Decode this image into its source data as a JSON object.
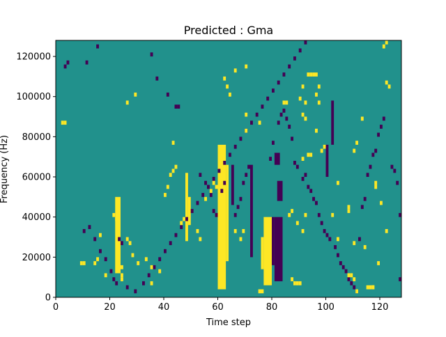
{
  "chart_data": {
    "type": "heatmap",
    "title": "Predicted : Gma",
    "xlabel": "Time step",
    "ylabel": "Frequency (Hz)",
    "xlim": [
      0,
      128
    ],
    "ylim": [
      0,
      128000
    ],
    "x_ticks": [
      0,
      20,
      40,
      60,
      80,
      100,
      120
    ],
    "y_ticks": [
      0,
      20000,
      40000,
      60000,
      80000,
      100000,
      120000
    ],
    "x_tick_labels": [
      "0",
      "20",
      "40",
      "60",
      "80",
      "100",
      "120"
    ],
    "y_tick_labels": [
      "0",
      "20000",
      "40000",
      "60000",
      "80000",
      "100000",
      "120000"
    ],
    "colormap": "viridis",
    "colors": {
      "low": "#440154",
      "mid": "#21918c",
      "high": "#fde725"
    },
    "background_level": "mid",
    "grid": false,
    "n_time_steps": 128,
    "n_freq_bins": 64,
    "bin_height_hz": 2000,
    "high_bands": [
      {
        "x": [
          60,
          63
        ],
        "freq": [
          4000,
          76000
        ]
      },
      {
        "x": [
          63,
          64
        ],
        "freq": [
          18000,
          66000
        ]
      },
      {
        "x": [
          77,
          80
        ],
        "freq": [
          6000,
          40000
        ]
      },
      {
        "x": [
          76,
          77
        ],
        "freq": [
          14000,
          30000
        ]
      },
      {
        "x": [
          48,
          49
        ],
        "freq": [
          28000,
          62000
        ]
      },
      {
        "x": [
          49,
          50
        ],
        "freq": [
          36000,
          50000
        ]
      },
      {
        "x": [
          22,
          24
        ],
        "freq": [
          12000,
          50000
        ]
      }
    ],
    "low_bands": [
      {
        "x": [
          81,
          84
        ],
        "freq": [
          8000,
          40000
        ]
      },
      {
        "x": [
          80,
          81
        ],
        "freq": [
          16000,
          40000
        ]
      },
      {
        "x": [
          82,
          84
        ],
        "freq": [
          48000,
          58000
        ]
      },
      {
        "x": [
          81,
          83
        ],
        "freq": [
          66000,
          72000
        ]
      },
      {
        "x": [
          72,
          73
        ],
        "freq": [
          20000,
          66000
        ]
      },
      {
        "x": [
          65,
          66
        ],
        "freq": [
          46000,
          66000
        ]
      },
      {
        "x": [
          102,
          103
        ],
        "freq": [
          76000,
          98000
        ]
      },
      {
        "x": [
          100,
          101
        ],
        "freq": [
          60000,
          76000
        ]
      }
    ],
    "high_cells": [
      [
        121,
        124000
      ],
      [
        122,
        126000
      ],
      [
        43,
        76000
      ],
      [
        29,
        100000
      ],
      [
        26,
        96000
      ],
      [
        63,
        104000
      ],
      [
        70,
        82000
      ],
      [
        75,
        86000
      ],
      [
        84,
        96000
      ],
      [
        85,
        96000
      ],
      [
        90,
        98000
      ],
      [
        91,
        104000
      ],
      [
        93,
        110000
      ],
      [
        94,
        110000
      ],
      [
        95,
        110000
      ],
      [
        96,
        110000
      ],
      [
        96,
        82000
      ],
      [
        97,
        96000
      ],
      [
        91,
        68000
      ],
      [
        98,
        72000
      ],
      [
        99,
        74000
      ],
      [
        104,
        56000
      ],
      [
        108,
        44000
      ],
      [
        108,
        42000
      ],
      [
        113,
        88000
      ],
      [
        118,
        54000
      ],
      [
        118,
        56000
      ],
      [
        120,
        46000
      ],
      [
        122,
        32000
      ],
      [
        114,
        24000
      ],
      [
        110,
        26000
      ],
      [
        104,
        28000
      ],
      [
        102,
        40000
      ],
      [
        92,
        40000
      ],
      [
        89,
        36000
      ],
      [
        91,
        32000
      ],
      [
        87,
        8000
      ],
      [
        88,
        6000
      ],
      [
        89,
        6000
      ],
      [
        90,
        6000
      ],
      [
        108,
        10000
      ],
      [
        109,
        10000
      ],
      [
        110,
        8000
      ],
      [
        111,
        2000
      ],
      [
        115,
        4000
      ],
      [
        116,
        4000
      ],
      [
        117,
        4000
      ],
      [
        119,
        16000
      ],
      [
        117,
        4000
      ],
      [
        35,
        6000
      ],
      [
        38,
        12000
      ],
      [
        30,
        16000
      ],
      [
        33,
        18000
      ],
      [
        14,
        16000
      ],
      [
        15,
        18000
      ],
      [
        9,
        16000
      ],
      [
        10,
        16000
      ],
      [
        18,
        10000
      ],
      [
        40,
        50000
      ],
      [
        41,
        54000
      ],
      [
        42,
        60000
      ],
      [
        43,
        62000
      ],
      [
        44,
        64000
      ],
      [
        46,
        36000
      ],
      [
        47,
        38000
      ],
      [
        52,
        32000
      ],
      [
        53,
        28000
      ],
      [
        55,
        48000
      ],
      [
        57,
        52000
      ],
      [
        58,
        56000
      ],
      [
        59,
        54000
      ],
      [
        66,
        32000
      ],
      [
        68,
        28000
      ],
      [
        69,
        32000
      ],
      [
        75,
        2000
      ],
      [
        76,
        2000
      ],
      [
        87,
        42000
      ],
      [
        86,
        40000
      ],
      [
        93,
        70000
      ],
      [
        94,
        70000
      ],
      [
        70,
        90000
      ],
      [
        70,
        114000
      ],
      [
        66,
        112000
      ],
      [
        62,
        108000
      ],
      [
        64,
        100000
      ],
      [
        97,
        104000
      ],
      [
        96,
        100000
      ],
      [
        92,
        96000
      ],
      [
        91,
        90000
      ],
      [
        92,
        88000
      ],
      [
        110,
        72000
      ],
      [
        111,
        76000
      ],
      [
        122,
        106000
      ],
      [
        123,
        104000
      ],
      [
        2,
        86000
      ],
      [
        3,
        86000
      ],
      [
        24,
        14000
      ],
      [
        28,
        20000
      ],
      [
        21,
        40000
      ],
      [
        22,
        38000
      ],
      [
        26,
        28000
      ],
      [
        27,
        26000
      ],
      [
        35,
        14000
      ],
      [
        24,
        10000
      ],
      [
        24,
        8000
      ],
      [
        16,
        30000
      ]
    ],
    "low_cells": [
      [
        3,
        114000
      ],
      [
        4,
        116000
      ],
      [
        11,
        116000
      ],
      [
        15,
        124000
      ],
      [
        23,
        28000
      ],
      [
        24,
        26000
      ],
      [
        35,
        120000
      ],
      [
        37,
        108000
      ],
      [
        41,
        100000
      ],
      [
        44,
        94000
      ],
      [
        45,
        94000
      ],
      [
        53,
        60000
      ],
      [
        55,
        56000
      ],
      [
        57,
        50000
      ],
      [
        58,
        42000
      ],
      [
        59,
        40000
      ],
      [
        61,
        52000
      ],
      [
        62,
        56000
      ],
      [
        66,
        40000
      ],
      [
        67,
        44000
      ],
      [
        68,
        48000
      ],
      [
        69,
        56000
      ],
      [
        70,
        60000
      ],
      [
        71,
        64000
      ],
      [
        79,
        68000
      ],
      [
        80,
        76000
      ],
      [
        82,
        86000
      ],
      [
        83,
        90000
      ],
      [
        84,
        92000
      ],
      [
        85,
        88000
      ],
      [
        86,
        84000
      ],
      [
        87,
        78000
      ],
      [
        88,
        66000
      ],
      [
        89,
        64000
      ],
      [
        91,
        58000
      ],
      [
        92,
        60000
      ],
      [
        93,
        54000
      ],
      [
        94,
        52000
      ],
      [
        95,
        48000
      ],
      [
        96,
        46000
      ],
      [
        97,
        40000
      ],
      [
        98,
        36000
      ],
      [
        99,
        32000
      ],
      [
        100,
        30000
      ],
      [
        101,
        28000
      ],
      [
        103,
        24000
      ],
      [
        104,
        20000
      ],
      [
        105,
        16000
      ],
      [
        106,
        14000
      ],
      [
        107,
        12000
      ],
      [
        108,
        8000
      ],
      [
        109,
        6000
      ],
      [
        110,
        4000
      ],
      [
        111,
        2000
      ],
      [
        112,
        28000
      ],
      [
        113,
        44000
      ],
      [
        114,
        48000
      ],
      [
        115,
        60000
      ],
      [
        116,
        64000
      ],
      [
        117,
        70000
      ],
      [
        118,
        72000
      ],
      [
        119,
        80000
      ],
      [
        120,
        84000
      ],
      [
        121,
        88000
      ],
      [
        124,
        64000
      ],
      [
        125,
        62000
      ],
      [
        126,
        56000
      ],
      [
        127,
        40000
      ],
      [
        127,
        8000
      ],
      [
        10,
        32000
      ],
      [
        12,
        34000
      ],
      [
        14,
        28000
      ],
      [
        16,
        22000
      ],
      [
        18,
        18000
      ],
      [
        20,
        12000
      ],
      [
        21,
        8000
      ],
      [
        22,
        6000
      ],
      [
        26,
        4000
      ],
      [
        29,
        2000
      ],
      [
        32,
        6000
      ],
      [
        34,
        10000
      ],
      [
        36,
        14000
      ],
      [
        38,
        18000
      ],
      [
        40,
        22000
      ],
      [
        42,
        26000
      ],
      [
        44,
        30000
      ],
      [
        46,
        34000
      ],
      [
        48,
        38000
      ],
      [
        50,
        42000
      ],
      [
        52,
        46000
      ],
      [
        54,
        50000
      ],
      [
        56,
        54000
      ],
      [
        58,
        58000
      ],
      [
        60,
        62000
      ],
      [
        62,
        66000
      ],
      [
        64,
        70000
      ],
      [
        66,
        74000
      ],
      [
        68,
        78000
      ],
      [
        70,
        82000
      ],
      [
        72,
        86000
      ],
      [
        74,
        90000
      ],
      [
        76,
        94000
      ],
      [
        78,
        98000
      ],
      [
        80,
        102000
      ],
      [
        82,
        106000
      ],
      [
        84,
        110000
      ],
      [
        86,
        114000
      ],
      [
        88,
        118000
      ],
      [
        90,
        122000
      ],
      [
        92,
        126000
      ]
    ]
  }
}
